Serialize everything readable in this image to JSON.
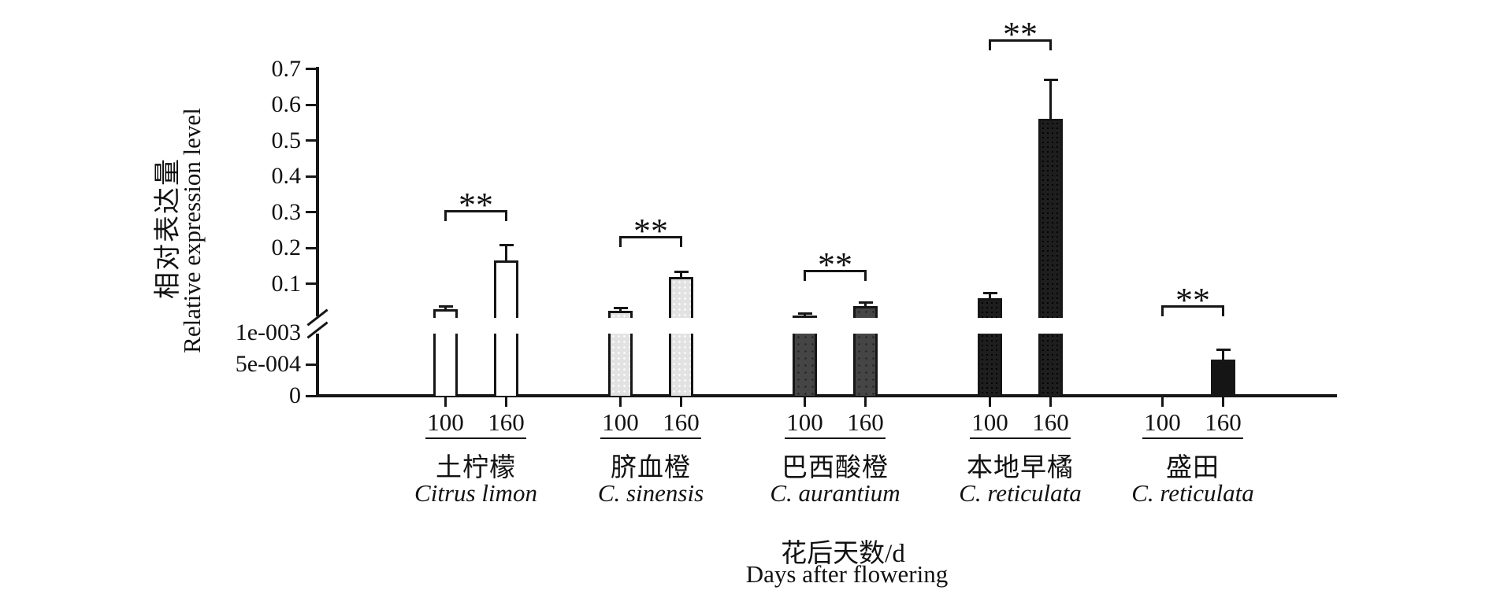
{
  "chart_data": {
    "type": "bar",
    "title": "",
    "ylabel_zh": "相对表达量",
    "ylabel_en": "Relative expression level",
    "xlabel_zh": "花后天数/d",
    "xlabel_en": "Days after flowering",
    "grid": false,
    "legend": "none",
    "ylim_upper": [
      0,
      0.7
    ],
    "axis_break": true,
    "y_axis": {
      "upper_ticks": [
        {
          "label": "0.7",
          "value": 0.7
        },
        {
          "label": "0.6",
          "value": 0.6
        },
        {
          "label": "0.5",
          "value": 0.5
        },
        {
          "label": "0.4",
          "value": 0.4
        },
        {
          "label": "0.3",
          "value": 0.3
        },
        {
          "label": "0.2",
          "value": 0.2
        },
        {
          "label": "0.1",
          "value": 0.1
        }
      ],
      "lower_ticks": [
        {
          "label": "1e-003",
          "value": 0.001,
          "has_tick": false
        },
        {
          "label": "5e-004",
          "value": 0.0005,
          "has_tick": true
        },
        {
          "label": "0",
          "value": 0,
          "has_tick": true
        }
      ],
      "break_between": [
        "0.1",
        "1e-003"
      ]
    },
    "categories": [
      "100",
      "160"
    ],
    "groups": [
      {
        "name_zh": "土柠檬",
        "name_latin": "Citrus limon",
        "fill": "#ffffff",
        "pattern": "white",
        "values": [
          0.028,
          0.165
        ],
        "errors": [
          0.008,
          0.042
        ],
        "significance": "**"
      },
      {
        "name_zh": "脐血橙",
        "name_latin": "C. sinensis",
        "fill": "#e2e2e2",
        "pattern": "light-stipple",
        "values": [
          0.024,
          0.118
        ],
        "errors": [
          0.008,
          0.016
        ],
        "significance": "**"
      },
      {
        "name_zh": "巴西酸橙",
        "name_latin": "C. aurantium",
        "fill": "#454545",
        "pattern": "dark-stipple",
        "values": [
          0.011,
          0.038
        ],
        "errors": [
          0.006,
          0.009
        ],
        "significance": "**"
      },
      {
        "name_zh": "本地早橘",
        "name_latin": "C. reticulata",
        "fill": "#1e1e1e",
        "pattern": "near-black-stipple",
        "values": [
          0.06,
          0.56
        ],
        "errors": [
          0.013,
          0.11
        ],
        "significance": "**"
      },
      {
        "name_zh": "盛田",
        "name_latin": "C. reticulata",
        "fill": "#151515",
        "pattern": "black",
        "values": [
          0,
          0.00058
        ],
        "errors": [
          0,
          0.00015
        ],
        "significance": "**"
      }
    ]
  }
}
